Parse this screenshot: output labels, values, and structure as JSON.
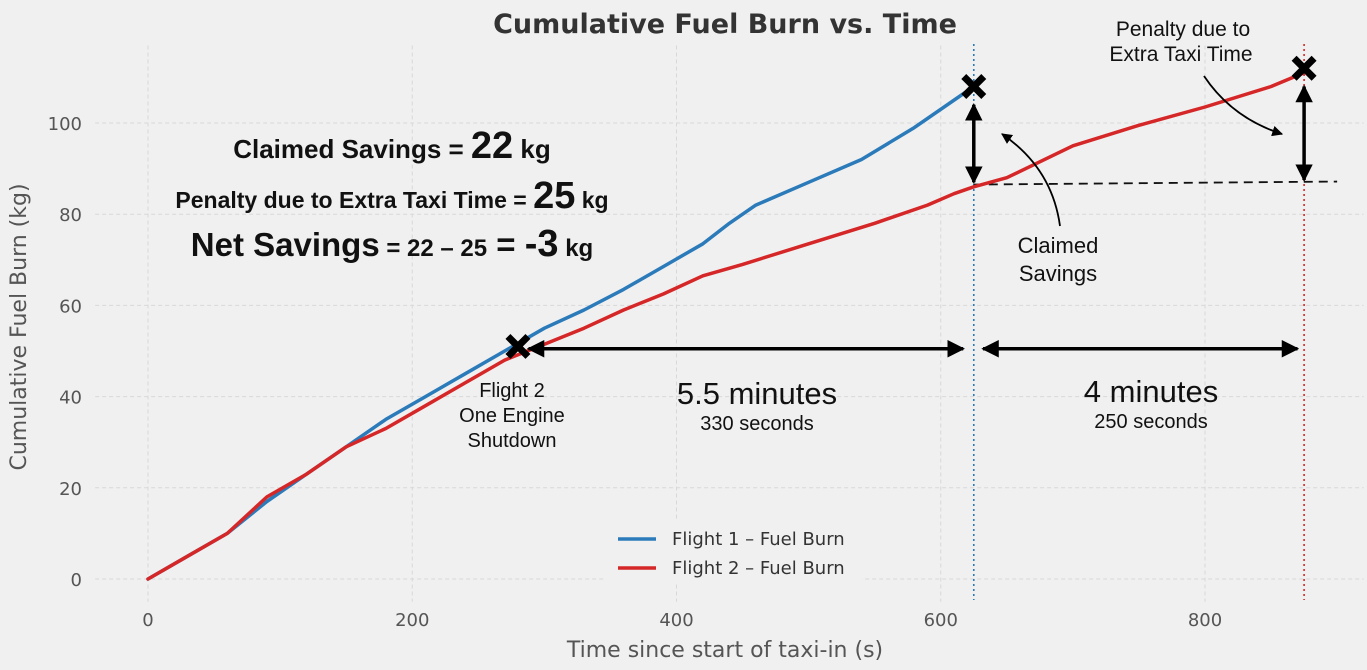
{
  "chart_data": {
    "type": "line",
    "title": "Cumulative Fuel Burn vs. Time",
    "xlabel": "Time since start of taxi-in (s)",
    "ylabel": "Cumulative Fuel Burn (kg)",
    "xlim": [
      -40,
      920
    ],
    "ylim": [
      -5,
      117
    ],
    "xticks": [
      0,
      200,
      400,
      600,
      800
    ],
    "yticks": [
      0,
      20,
      40,
      60,
      80,
      100
    ],
    "grid": true,
    "legend_position": "bottom-center",
    "series": [
      {
        "name": "Flight 1 – Fuel Burn",
        "color": "#2b7bba",
        "x": [
          0,
          30,
          60,
          90,
          120,
          150,
          180,
          210,
          240,
          270,
          300,
          330,
          360,
          390,
          420,
          440,
          460,
          500,
          540,
          580,
          625
        ],
        "y": [
          0,
          5,
          10,
          17,
          23,
          29,
          35,
          40,
          45,
          50,
          55,
          59,
          63.5,
          68.5,
          73.5,
          78,
          82,
          87,
          92,
          99,
          108
        ]
      },
      {
        "name": "Flight 2 – Fuel Burn",
        "color": "#d62728",
        "x": [
          0,
          30,
          60,
          90,
          120,
          150,
          180,
          210,
          240,
          270,
          300,
          330,
          360,
          390,
          420,
          450,
          500,
          550,
          590,
          610,
          625,
          650,
          700,
          750,
          800,
          850,
          875
        ],
        "y": [
          0,
          5,
          10,
          18,
          23,
          29,
          33,
          38,
          43,
          48,
          51.5,
          55,
          59,
          62.5,
          66.5,
          69,
          73.5,
          78,
          82,
          84.5,
          86,
          88,
          95,
          99.5,
          103.5,
          108,
          111
        ]
      }
    ],
    "markers": [
      {
        "x": 280,
        "y": 51,
        "symbol": "X"
      },
      {
        "x": 625,
        "y": 108,
        "symbol": "X"
      },
      {
        "x": 875,
        "y": 112,
        "symbol": "X"
      }
    ],
    "vertical_lines": [
      {
        "x": 625,
        "color": "#2b7bba",
        "style": "dotted"
      },
      {
        "x": 875,
        "color": "#d62728",
        "style": "dotted"
      }
    ],
    "horizontal_reference": {
      "y": 86.5,
      "x_from": 625,
      "x_to": 900,
      "style": "dashed"
    },
    "annotations": {
      "savings_claimed_label": "Claimed Savings = ",
      "savings_claimed_value": "22",
      "savings_claimed_unit": " kg",
      "penalty_label": "Penalty due to Extra Taxi Time = ",
      "penalty_value": "25",
      "penalty_unit": " kg",
      "net_label": "Net Savings",
      "net_expr_prefix": " = ",
      "net_expr_nums": "22 – 25",
      "net_expr_eq": " = ",
      "net_value": "-3",
      "net_unit": " kg",
      "flight2_line1": "Flight 2",
      "flight2_line2": "One Engine",
      "flight2_line3": "Shutdown",
      "span1_main": "5.5 minutes",
      "span1_sub": "330 seconds",
      "span2_main": "4 minutes",
      "span2_sub": "250 seconds",
      "claimed_line1": "Claimed",
      "claimed_line2": "Savings",
      "penalty_line1": "Penalty due to",
      "penalty_line2": "Extra Taxi Time"
    }
  }
}
